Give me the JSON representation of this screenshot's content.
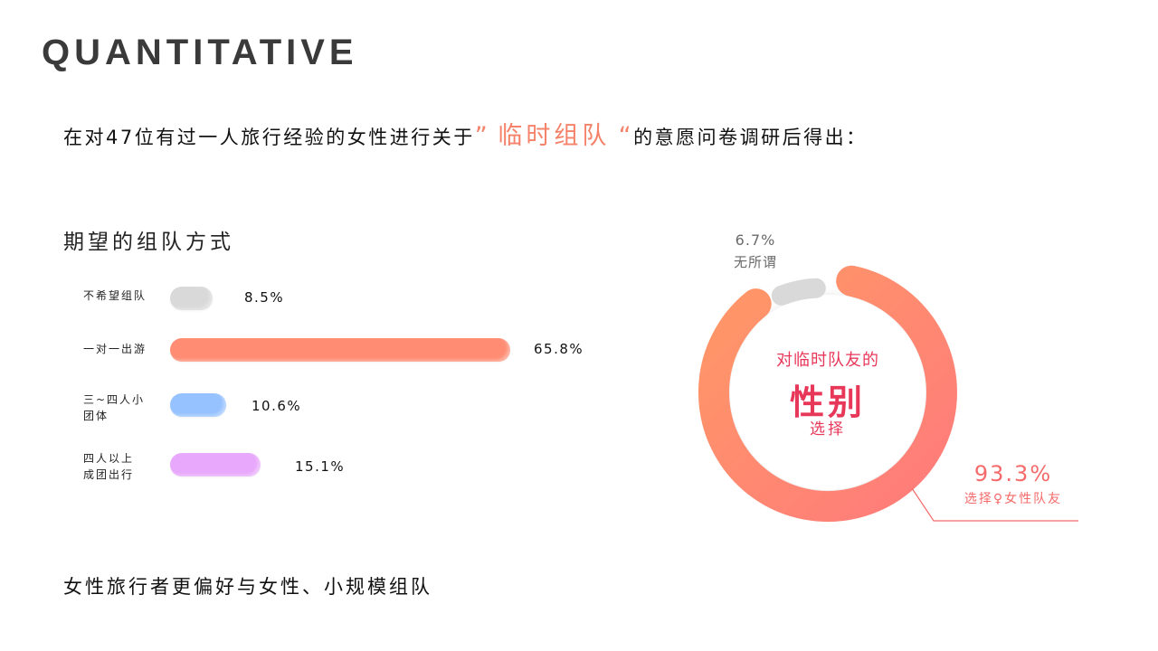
{
  "page": {
    "title": "QUANTITATIVE",
    "intro_prefix": "在对47位有过一人旅行经验的女性进行关于",
    "intro_quote_open": "”",
    "intro_highlight": "临时组队",
    "intro_quote_close": "“",
    "intro_suffix": "的意愿问卷调研后得出：",
    "conclusion": "女性旅行者更偏好与女性、小规模组队"
  },
  "bar_section": {
    "title": "期望的组队方式"
  },
  "donut_section": {
    "center_line1": "对临时队友的",
    "center_line2": "性别",
    "center_line3": "选择",
    "gray_pct": "6.7%",
    "gray_name": "无所谓",
    "main_pct": "93.3%",
    "main_name": "选择♀女性队友"
  },
  "colors": {
    "accent": "#f5826a",
    "center_text": "#e8385a",
    "gray": "#d9d9d9",
    "bar_coral": "#ff8c73",
    "bar_blue": "#96c2ff",
    "bar_purple": "#e8a8fb",
    "donut_start": "#ff9466",
    "donut_end": "#ff7b7b"
  },
  "chart_data": [
    {
      "type": "bar",
      "orientation": "horizontal",
      "title": "期望的组队方式",
      "categories": [
        "不希望组队",
        "一对一出游",
        "三~四人小团体",
        "四人以上成团出行"
      ],
      "values": [
        8.5,
        65.8,
        10.6,
        15.1
      ],
      "value_labels": [
        "8.5%",
        "65.8%",
        "10.6%",
        "15.1%"
      ],
      "colors": [
        "#d9d9d9",
        "#ff8c73",
        "#96c2ff",
        "#e8a8fb"
      ],
      "unit": "%",
      "grid": false
    },
    {
      "type": "pie",
      "variant": "donut",
      "title": "对临时队友的性别选择",
      "categories": [
        "选择♀女性队友",
        "无所谓"
      ],
      "values": [
        93.3,
        6.7
      ],
      "value_labels": [
        "93.3%",
        "6.7%"
      ],
      "colors": [
        "#ff8770",
        "#d9d9d9"
      ]
    }
  ]
}
